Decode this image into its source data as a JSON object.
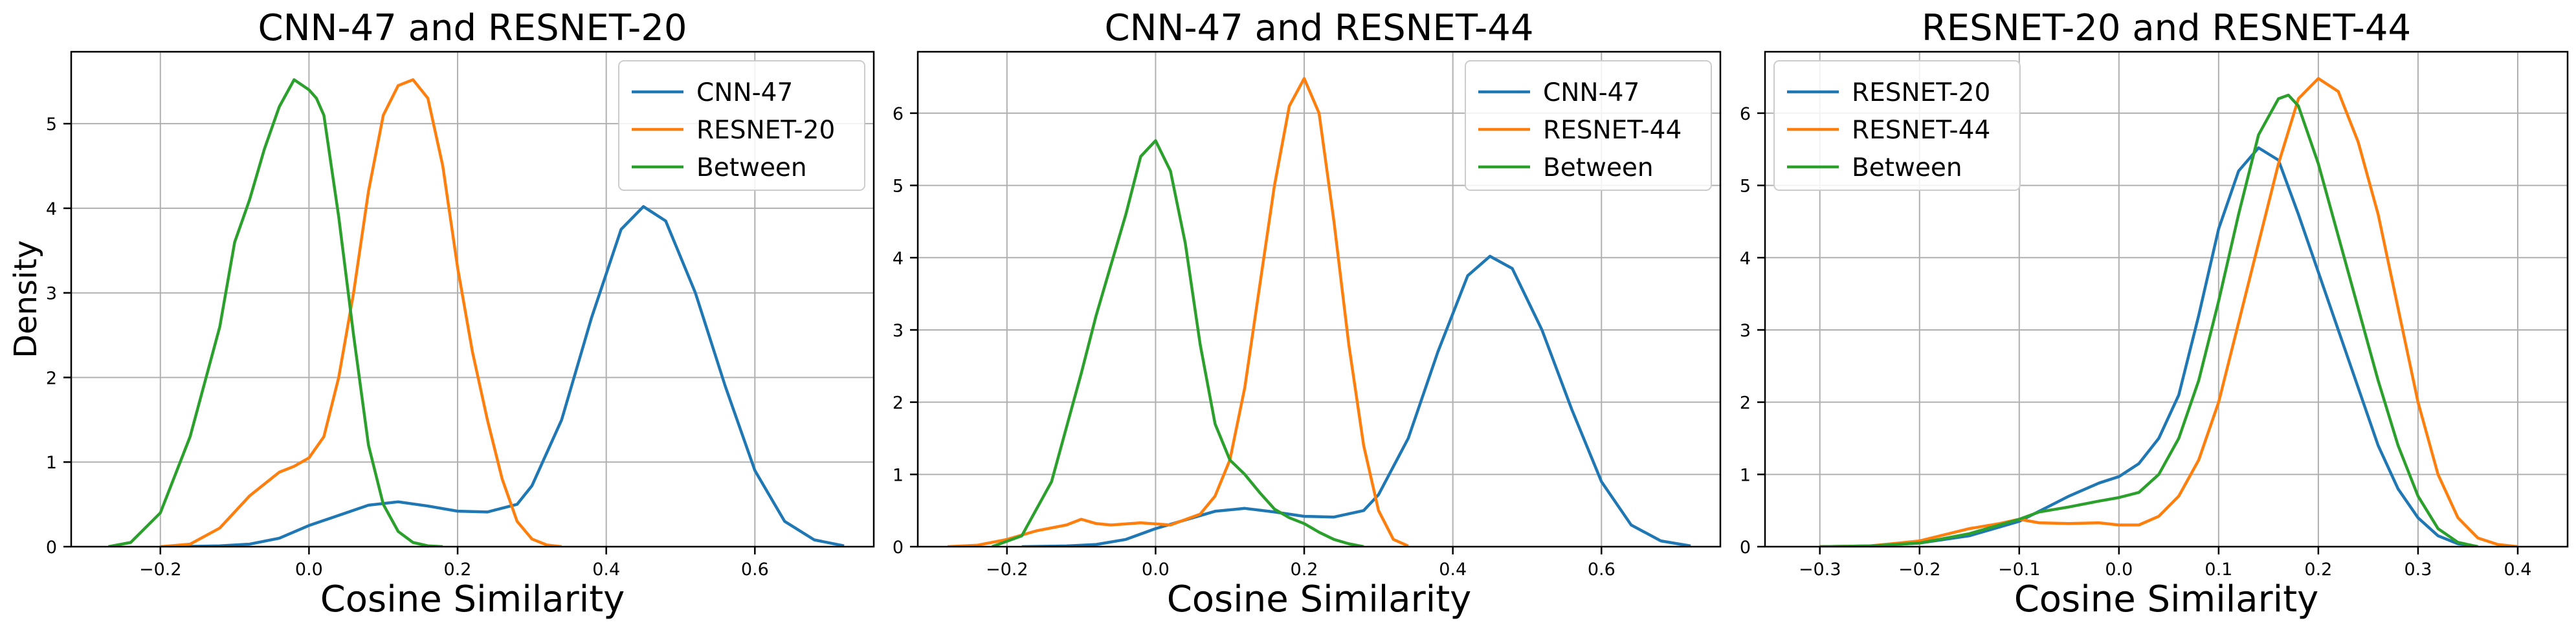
{
  "colors": {
    "blue": "#1f77b4",
    "orange": "#ff7f0e",
    "green": "#2ca02c",
    "grid": "#b0b0b0",
    "axis": "#000000"
  },
  "chart_data": [
    {
      "type": "line",
      "title": "CNN-47 and RESNET-20",
      "xlabel": "Cosine Similarity",
      "ylabel": "Density",
      "xlim": [
        -0.32,
        0.76
      ],
      "ylim": [
        0,
        5.85
      ],
      "xticks": [
        -0.2,
        0.0,
        0.2,
        0.4,
        0.6
      ],
      "yticks": [
        0,
        1,
        2,
        3,
        4,
        5
      ],
      "grid": true,
      "legend": "top-right",
      "series": [
        {
          "name": "CNN-47",
          "color": "#1f77b4",
          "x": [
            -0.18,
            -0.12,
            -0.08,
            -0.04,
            0.0,
            0.04,
            0.08,
            0.12,
            0.16,
            0.2,
            0.24,
            0.28,
            0.3,
            0.34,
            0.38,
            0.42,
            0.45,
            0.48,
            0.52,
            0.56,
            0.6,
            0.64,
            0.68,
            0.72
          ],
          "y": [
            0,
            0.01,
            0.03,
            0.1,
            0.25,
            0.37,
            0.49,
            0.53,
            0.48,
            0.42,
            0.41,
            0.5,
            0.72,
            1.5,
            2.7,
            3.75,
            4.02,
            3.85,
            3.0,
            1.9,
            0.9,
            0.3,
            0.08,
            0.01
          ]
        },
        {
          "name": "RESNET-20",
          "color": "#ff7f0e",
          "x": [
            -0.2,
            -0.16,
            -0.12,
            -0.08,
            -0.04,
            -0.02,
            0.0,
            0.02,
            0.04,
            0.06,
            0.08,
            0.1,
            0.12,
            0.14,
            0.16,
            0.18,
            0.2,
            0.22,
            0.24,
            0.26,
            0.28,
            0.3,
            0.32,
            0.34
          ],
          "y": [
            0,
            0.03,
            0.22,
            0.6,
            0.88,
            0.95,
            1.05,
            1.3,
            2.0,
            3.0,
            4.2,
            5.1,
            5.45,
            5.52,
            5.3,
            4.5,
            3.3,
            2.3,
            1.5,
            0.8,
            0.3,
            0.09,
            0.02,
            0
          ]
        },
        {
          "name": "Between",
          "color": "#2ca02c",
          "x": [
            -0.27,
            -0.24,
            -0.2,
            -0.16,
            -0.12,
            -0.1,
            -0.08,
            -0.06,
            -0.04,
            -0.02,
            0.0,
            0.01,
            0.02,
            0.04,
            0.06,
            0.08,
            0.1,
            0.12,
            0.14,
            0.16,
            0.18
          ],
          "y": [
            0,
            0.05,
            0.4,
            1.3,
            2.6,
            3.6,
            4.1,
            4.7,
            5.2,
            5.52,
            5.4,
            5.3,
            5.1,
            3.9,
            2.5,
            1.2,
            0.5,
            0.18,
            0.05,
            0.01,
            0
          ]
        }
      ]
    },
    {
      "type": "line",
      "title": "CNN-47 and RESNET-44",
      "xlabel": "Cosine Similarity",
      "ylabel": "",
      "xlim": [
        -0.32,
        0.76
      ],
      "ylim": [
        0,
        6.85
      ],
      "xticks": [
        -0.2,
        0.0,
        0.2,
        0.4,
        0.6
      ],
      "yticks": [
        0,
        1,
        2,
        3,
        4,
        5,
        6
      ],
      "grid": true,
      "legend": "top-right",
      "series": [
        {
          "name": "CNN-47",
          "color": "#1f77b4",
          "x": [
            -0.18,
            -0.12,
            -0.08,
            -0.04,
            0.0,
            0.04,
            0.08,
            0.12,
            0.16,
            0.2,
            0.24,
            0.28,
            0.3,
            0.34,
            0.38,
            0.42,
            0.45,
            0.48,
            0.52,
            0.56,
            0.6,
            0.64,
            0.68,
            0.72
          ],
          "y": [
            0,
            0.01,
            0.03,
            0.1,
            0.25,
            0.37,
            0.49,
            0.53,
            0.48,
            0.42,
            0.41,
            0.5,
            0.72,
            1.5,
            2.7,
            3.75,
            4.02,
            3.85,
            3.0,
            1.9,
            0.9,
            0.3,
            0.08,
            0.01
          ]
        },
        {
          "name": "RESNET-44",
          "color": "#ff7f0e",
          "x": [
            -0.28,
            -0.24,
            -0.2,
            -0.16,
            -0.12,
            -0.1,
            -0.08,
            -0.06,
            -0.02,
            0.02,
            0.06,
            0.08,
            0.1,
            0.12,
            0.14,
            0.16,
            0.18,
            0.2,
            0.22,
            0.24,
            0.26,
            0.28,
            0.3,
            0.32,
            0.34
          ],
          "y": [
            0,
            0.02,
            0.1,
            0.22,
            0.3,
            0.38,
            0.32,
            0.3,
            0.33,
            0.3,
            0.45,
            0.7,
            1.2,
            2.2,
            3.6,
            5.0,
            6.1,
            6.48,
            6.0,
            4.5,
            2.8,
            1.4,
            0.5,
            0.1,
            0.01
          ]
        },
        {
          "name": "Between",
          "color": "#2ca02c",
          "x": [
            -0.22,
            -0.18,
            -0.14,
            -0.1,
            -0.08,
            -0.06,
            -0.04,
            -0.02,
            0.0,
            0.02,
            0.04,
            0.06,
            0.08,
            0.1,
            0.12,
            0.14,
            0.16,
            0.18,
            0.2,
            0.22,
            0.24,
            0.26,
            0.28
          ],
          "y": [
            0,
            0.15,
            0.9,
            2.4,
            3.2,
            3.9,
            4.6,
            5.4,
            5.62,
            5.2,
            4.2,
            2.8,
            1.7,
            1.2,
            1.0,
            0.75,
            0.52,
            0.4,
            0.32,
            0.2,
            0.1,
            0.04,
            0
          ]
        }
      ]
    },
    {
      "type": "line",
      "title": "RESNET-20 and RESNET-44",
      "xlabel": "Cosine Similarity",
      "ylabel": "",
      "xlim": [
        -0.355,
        0.45
      ],
      "ylim": [
        0,
        6.85
      ],
      "xticks": [
        -0.3,
        -0.2,
        -0.1,
        0.0,
        0.1,
        0.2,
        0.3,
        0.4
      ],
      "yticks": [
        0,
        1,
        2,
        3,
        4,
        5,
        6
      ],
      "grid": true,
      "legend": "top-left",
      "series": [
        {
          "name": "RESNET-20",
          "color": "#1f77b4",
          "x": [
            -0.3,
            -0.25,
            -0.2,
            -0.15,
            -0.1,
            -0.05,
            -0.02,
            0.0,
            0.02,
            0.04,
            0.06,
            0.08,
            0.1,
            0.12,
            0.14,
            0.16,
            0.18,
            0.2,
            0.22,
            0.24,
            0.26,
            0.28,
            0.3,
            0.32,
            0.34,
            0.36
          ],
          "y": [
            0,
            0.01,
            0.05,
            0.15,
            0.35,
            0.7,
            0.88,
            0.97,
            1.15,
            1.5,
            2.1,
            3.2,
            4.4,
            5.2,
            5.52,
            5.35,
            4.6,
            3.8,
            3.0,
            2.2,
            1.4,
            0.8,
            0.4,
            0.15,
            0.04,
            0
          ]
        },
        {
          "name": "RESNET-44",
          "color": "#ff7f0e",
          "x": [
            -0.3,
            -0.25,
            -0.2,
            -0.15,
            -0.12,
            -0.1,
            -0.08,
            -0.05,
            -0.02,
            0.0,
            0.02,
            0.04,
            0.06,
            0.08,
            0.1,
            0.12,
            0.14,
            0.16,
            0.18,
            0.2,
            0.22,
            0.24,
            0.26,
            0.28,
            0.3,
            0.32,
            0.34,
            0.36,
            0.38,
            0.4
          ],
          "y": [
            0,
            0.01,
            0.08,
            0.25,
            0.32,
            0.38,
            0.33,
            0.32,
            0.33,
            0.3,
            0.3,
            0.42,
            0.7,
            1.2,
            2.0,
            3.1,
            4.2,
            5.3,
            6.2,
            6.48,
            6.3,
            5.6,
            4.6,
            3.3,
            2.0,
            1.0,
            0.4,
            0.12,
            0.03,
            0
          ]
        },
        {
          "name": "Between",
          "color": "#2ca02c",
          "x": [
            -0.3,
            -0.25,
            -0.2,
            -0.15,
            -0.1,
            -0.08,
            -0.05,
            -0.02,
            0.0,
            0.02,
            0.04,
            0.06,
            0.08,
            0.1,
            0.12,
            0.14,
            0.16,
            0.17,
            0.18,
            0.2,
            0.22,
            0.24,
            0.26,
            0.28,
            0.3,
            0.32,
            0.34,
            0.36
          ],
          "y": [
            0,
            0.01,
            0.05,
            0.18,
            0.38,
            0.48,
            0.55,
            0.63,
            0.68,
            0.75,
            1.0,
            1.5,
            2.3,
            3.4,
            4.6,
            5.7,
            6.2,
            6.25,
            6.1,
            5.3,
            4.3,
            3.3,
            2.3,
            1.4,
            0.7,
            0.25,
            0.06,
            0
          ]
        }
      ]
    }
  ]
}
